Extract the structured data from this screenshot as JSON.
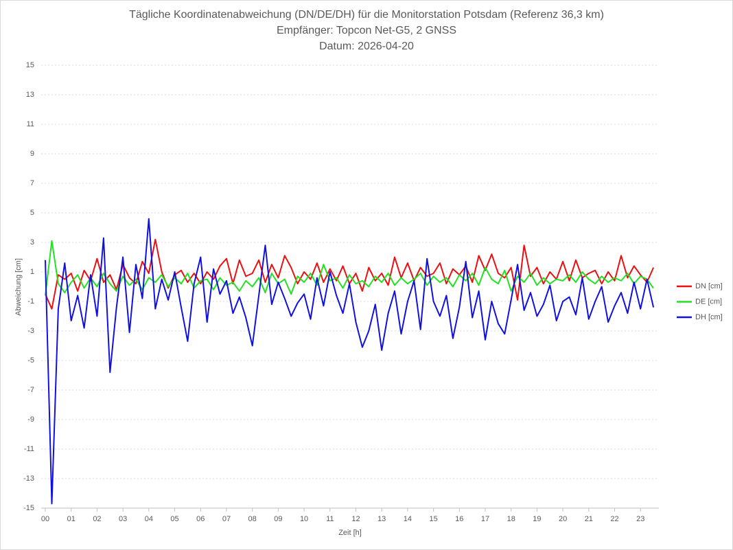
{
  "chart_data": {
    "type": "line",
    "title": "Tägliche Koordinatenabweichung (DN/DE/DH) für die Monitorstation Potsdam (Referenz 36,3 km)",
    "subtitle": [
      "Empfänger: Topcon Net-G5, 2 GNSS",
      "Datum: 2026-04-20"
    ],
    "x_label": "Zeit [h]",
    "y_label": "Abweichung [cm]",
    "grid": true,
    "legend": "right",
    "xlim": [
      -0.16,
      23.71
    ],
    "ylim": [
      -15,
      15
    ],
    "yticks": [
      -15,
      -13,
      -11,
      -9,
      -7,
      -5,
      -3,
      -1,
      1,
      3,
      5,
      7,
      9,
      11,
      13,
      15
    ],
    "xticks": [
      {
        "value": 0,
        "label": "00"
      },
      {
        "value": 1,
        "label": "01"
      },
      {
        "value": 2,
        "label": "02"
      },
      {
        "value": 3,
        "label": "03"
      },
      {
        "value": 4,
        "label": "04"
      },
      {
        "value": 5,
        "label": "05"
      },
      {
        "value": 6,
        "label": "06"
      },
      {
        "value": 7,
        "label": "07"
      },
      {
        "value": 8,
        "label": "08"
      },
      {
        "value": 9,
        "label": "09"
      },
      {
        "value": 10,
        "label": "10"
      },
      {
        "value": 11,
        "label": "11"
      },
      {
        "value": 12,
        "label": "12"
      },
      {
        "value": 13,
        "label": "13"
      },
      {
        "value": 14,
        "label": "14"
      },
      {
        "value": 15,
        "label": "15"
      },
      {
        "value": 16,
        "label": "16"
      },
      {
        "value": 17,
        "label": "17"
      },
      {
        "value": 18,
        "label": "18"
      },
      {
        "value": 19,
        "label": "19"
      },
      {
        "value": 20,
        "label": "20"
      },
      {
        "value": 21,
        "label": "21"
      },
      {
        "value": 22,
        "label": "22"
      },
      {
        "value": 23,
        "label": "23"
      }
    ],
    "x": [
      0,
      0.25,
      0.5,
      0.75,
      1,
      1.25,
      1.5,
      1.75,
      2,
      2.25,
      2.5,
      2.75,
      3,
      3.25,
      3.5,
      3.75,
      4,
      4.25,
      4.5,
      4.75,
      5,
      5.25,
      5.5,
      5.75,
      6,
      6.25,
      6.5,
      6.75,
      7,
      7.25,
      7.5,
      7.75,
      8,
      8.25,
      8.5,
      8.75,
      9,
      9.25,
      9.5,
      9.75,
      10,
      10.25,
      10.5,
      10.75,
      11,
      11.25,
      11.5,
      11.75,
      12,
      12.25,
      12.5,
      12.75,
      13,
      13.25,
      13.5,
      13.75,
      14,
      14.25,
      14.5,
      14.75,
      15,
      15.25,
      15.5,
      15.75,
      16,
      16.25,
      16.5,
      16.75,
      17,
      17.25,
      17.5,
      17.75,
      18,
      18.25,
      18.5,
      18.75,
      19,
      19.25,
      19.5,
      19.75,
      20,
      20.25,
      20.5,
      20.75,
      21,
      21.25,
      21.5,
      21.75,
      22,
      22.25,
      22.5,
      22.75,
      23,
      23.25,
      23.5
    ],
    "series": [
      {
        "name": "DN [cm]",
        "color": "#e81010",
        "values": [
          -0.5,
          -1.5,
          0.8,
          0.5,
          0.9,
          -0.3,
          1.1,
          0.4,
          1.9,
          0.3,
          0.8,
          -0.2,
          1.5,
          0.6,
          0.2,
          1.7,
          0.9,
          3.2,
          1.0,
          -0.1,
          0.8,
          1.1,
          0.3,
          0.9,
          0.2,
          1.0,
          0.5,
          1.4,
          1.9,
          0.2,
          1.8,
          0.7,
          0.9,
          1.8,
          0.3,
          1.5,
          0.6,
          2.1,
          1.3,
          0.2,
          1.0,
          0.5,
          1.6,
          0.3,
          1.2,
          0.4,
          1.4,
          0.2,
          0.9,
          -0.3,
          1.3,
          0.4,
          0.9,
          0.1,
          2.0,
          0.6,
          1.6,
          0.4,
          1.3,
          0.7,
          0.9,
          1.6,
          0.2,
          1.2,
          0.8,
          1.4,
          0.3,
          2.1,
          1.1,
          2.2,
          0.9,
          0.6,
          1.3,
          -0.9,
          2.8,
          0.7,
          1.3,
          0.2,
          1.0,
          0.5,
          1.7,
          0.4,
          1.8,
          0.6,
          0.9,
          1.1,
          0.2,
          1.0,
          0.4,
          2.1,
          0.6,
          1.4,
          0.8,
          0.3,
          1.3
        ]
      },
      {
        "name": "DE [cm]",
        "color": "#22e022",
        "values": [
          -0.6,
          3.1,
          0.2,
          -0.4,
          0.3,
          0.8,
          -0.1,
          0.6,
          0.0,
          0.9,
          0.2,
          -0.3,
          0.7,
          0.1,
          0.5,
          -0.2,
          0.6,
          0.3,
          0.8,
          0.0,
          0.6,
          0.2,
          0.9,
          -0.1,
          0.4,
          0.5,
          -0.2,
          0.6,
          0.1,
          0.3,
          -0.3,
          0.4,
          0.0,
          0.6,
          -0.4,
          0.9,
          0.2,
          0.5,
          -0.5,
          0.7,
          0.3,
          0.9,
          0.1,
          1.5,
          0.4,
          0.6,
          -0.1,
          0.8,
          0.2,
          0.4,
          0.0,
          0.7,
          0.3,
          0.9,
          0.1,
          0.6,
          0.2,
          0.5,
          0.9,
          0.1,
          0.7,
          0.3,
          0.6,
          0.0,
          0.8,
          0.4,
          0.9,
          0.1,
          1.3,
          0.5,
          0.2,
          1.1,
          -0.3,
          0.7,
          0.3,
          0.9,
          0.1,
          0.6,
          0.2,
          0.5,
          0.4,
          0.8,
          0.3,
          1.0,
          0.5,
          0.2,
          0.7,
          0.3,
          0.6,
          0.4,
          0.9,
          0.2,
          0.7,
          0.5,
          -0.1
        ]
      },
      {
        "name": "DH [cm]",
        "color": "#1010e0",
        "values": [
          1.8,
          -14.7,
          -1.5,
          1.6,
          -2.3,
          -0.6,
          -2.8,
          0.8,
          -2.0,
          3.3,
          -5.8,
          -1.4,
          2.0,
          -3.1,
          1.5,
          -0.8,
          4.6,
          -1.5,
          0.5,
          -0.9,
          1.0,
          -1.4,
          -3.7,
          0.2,
          2.0,
          -2.4,
          1.2,
          -0.5,
          0.4,
          -1.8,
          -0.7,
          -2.1,
          -4.0,
          -0.6,
          2.8,
          -1.2,
          0.3,
          -0.8,
          -2.0,
          -1.1,
          -0.5,
          -2.2,
          0.6,
          -1.3,
          1.0,
          -0.6,
          -1.8,
          0.2,
          -2.4,
          -4.1,
          -3.0,
          -1.2,
          -4.3,
          -1.8,
          -0.3,
          -3.2,
          -1.0,
          0.4,
          -2.9,
          1.9,
          -1.0,
          -2.0,
          -0.6,
          -3.5,
          -1.4,
          1.7,
          -2.1,
          -0.3,
          -3.6,
          -1.0,
          -2.5,
          -3.2,
          -0.9,
          1.5,
          -1.6,
          -0.4,
          -2.0,
          -1.2,
          0.1,
          -2.3,
          -1.0,
          -0.7,
          -1.9,
          0.6,
          -2.2,
          -1.0,
          0.0,
          -2.4,
          -1.3,
          -0.4,
          -1.8,
          0.3,
          -1.5,
          0.5,
          -1.4
        ]
      }
    ]
  }
}
